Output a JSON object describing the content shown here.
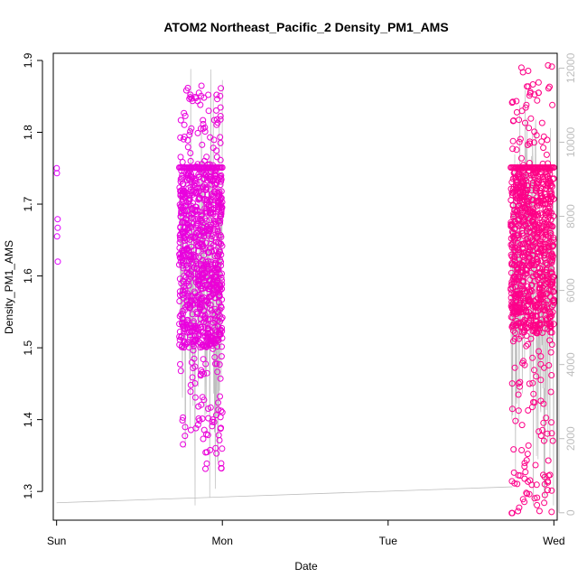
{
  "chart_data": {
    "type": "scatter",
    "title": "ATOM2 Northeast_Pacific_2 Density_PM1_AMS",
    "xlabel": "Date",
    "ylabel": "Density_PM1_AMS",
    "x_ticks": [
      "Sun",
      "Mon",
      "Tue",
      "Wed"
    ],
    "xlim": [
      -0.02,
      3.02
    ],
    "ylim": [
      1.26,
      1.91
    ],
    "y_ticks": [
      1.3,
      1.4,
      1.5,
      1.6,
      1.7,
      1.8,
      1.9
    ],
    "y2lim": [
      -200,
      12400
    ],
    "y2_ticks": [
      0,
      2000,
      4000,
      6000,
      8000,
      10000,
      12000
    ],
    "grid": false,
    "colors": {
      "series_start": "#e100ff",
      "series_end": "#ff0080",
      "secondary_line": "#bdbdbd"
    },
    "series": [
      {
        "kind": "points",
        "clusters": [
          {
            "x_range": [
              0.0,
              0.01
            ],
            "y_values": [
              1.62,
              1.655,
              1.667,
              1.679,
              1.743,
              1.75
            ]
          },
          {
            "x_range": [
              0.74,
              1.0
            ],
            "y_core": [
              1.5,
              1.75
            ],
            "y_cap": 1.751,
            "y_spread": [
              1.33,
              1.867
            ]
          },
          {
            "x_range": [
              2.74,
              3.0
            ],
            "y_core": [
              1.52,
              1.75
            ],
            "y_cap": 1.751,
            "y_spread": [
              1.268,
              1.9
            ]
          }
        ]
      },
      {
        "kind": "secondary_line",
        "axis": "right",
        "points": [
          [
            0.0,
            270
          ],
          [
            2.75,
            700
          ],
          [
            2.75,
            11800
          ],
          [
            3.0,
            11800
          ]
        ]
      }
    ]
  }
}
